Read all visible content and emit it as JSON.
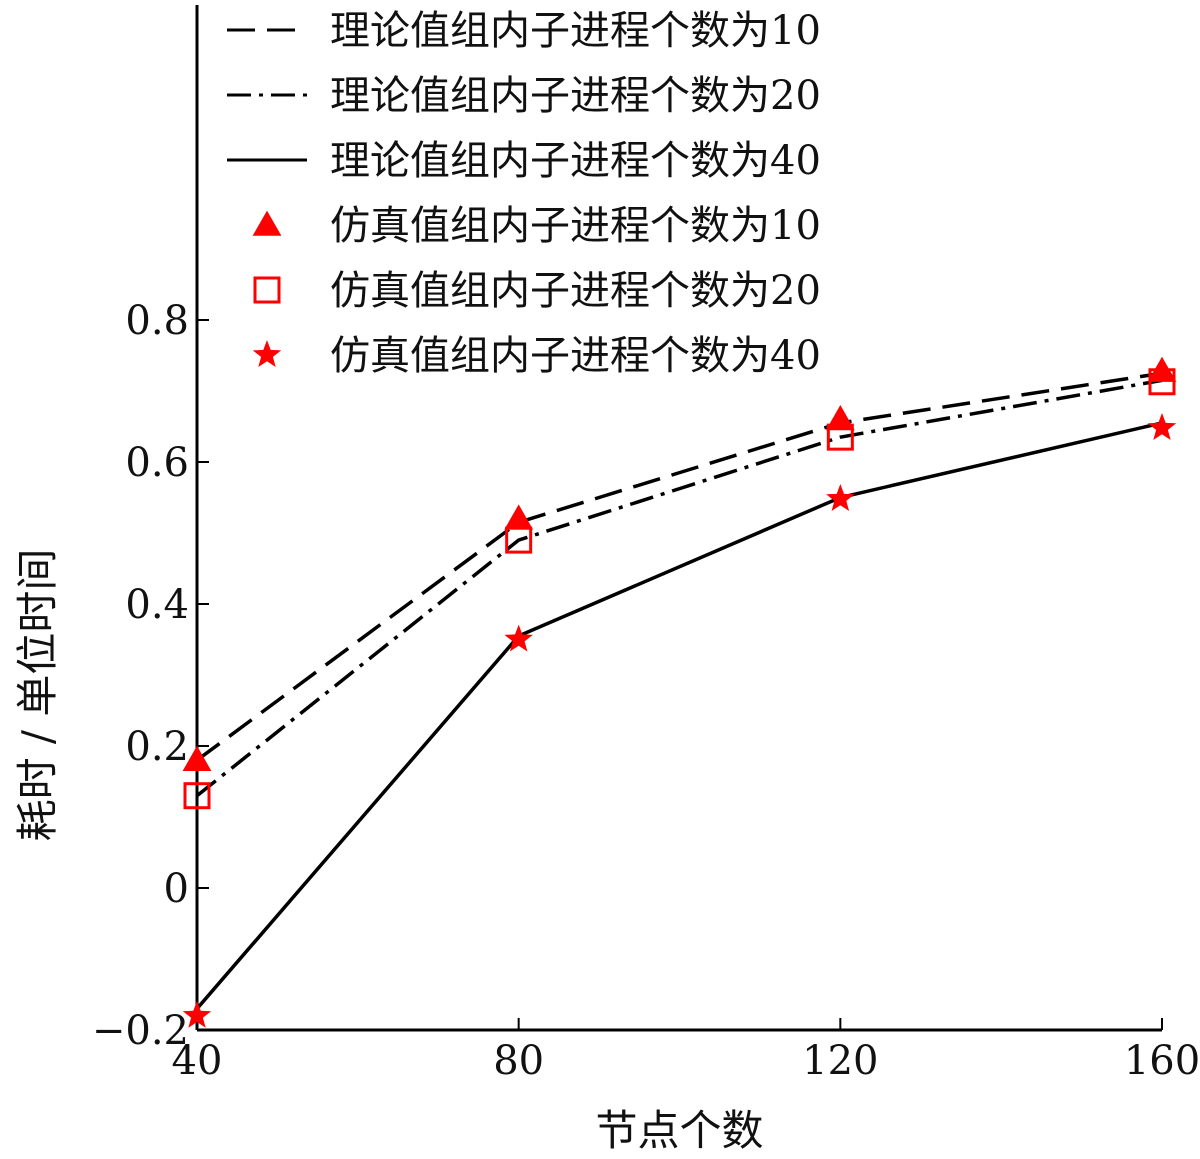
{
  "chart_data": {
    "type": "line",
    "title": "",
    "xlabel": "节点个数",
    "ylabel": "耗时 / 单位时间",
    "x": [
      40,
      80,
      120,
      160
    ],
    "xlim": [
      40,
      160
    ],
    "ylim": [
      -0.2,
      0.8
    ],
    "xticks": [
      "40",
      "80",
      "120",
      "160"
    ],
    "yticks": [
      "−0.2",
      "0",
      "0.2",
      "0.4",
      "0.6",
      "0.8"
    ],
    "grid": false,
    "legend_position": "top-right",
    "series": [
      {
        "name": "理论值组内子进程个数为10",
        "kind": "line",
        "style": "dashed",
        "color": "#000000",
        "values": [
          0.18,
          0.515,
          0.655,
          0.725
        ]
      },
      {
        "name": "理论值组内子进程个数为20",
        "kind": "line",
        "style": "dashdot",
        "color": "#000000",
        "values": [
          0.13,
          0.49,
          0.635,
          0.715
        ]
      },
      {
        "name": "理论值组内子进程个数为40",
        "kind": "line",
        "style": "solid",
        "color": "#000000",
        "values": [
          -0.17,
          0.355,
          0.55,
          0.655
        ]
      },
      {
        "name": "仿真值组内子进程个数为10",
        "kind": "marker",
        "marker": "triangle",
        "color": "#ff0000",
        "values": [
          0.18,
          0.52,
          0.66,
          0.728
        ]
      },
      {
        "name": "仿真值组内子进程个数为20",
        "kind": "marker",
        "marker": "square",
        "color": "#ff0000",
        "values": [
          0.13,
          0.49,
          0.635,
          0.713
        ]
      },
      {
        "name": "仿真值组内子进程个数为40",
        "kind": "marker",
        "marker": "star",
        "color": "#ff0000",
        "values": [
          -0.18,
          0.35,
          0.548,
          0.648
        ]
      }
    ]
  }
}
